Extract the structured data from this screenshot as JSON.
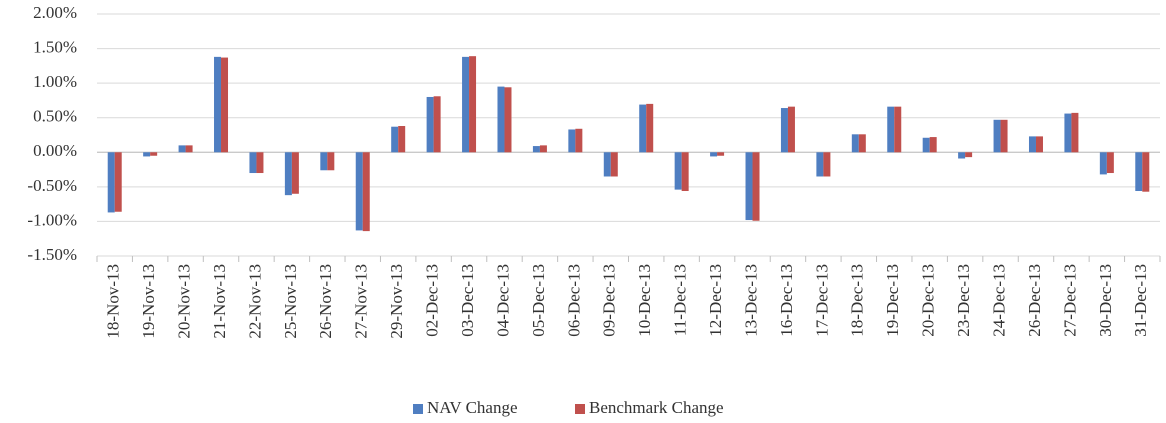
{
  "chart_data": {
    "type": "bar",
    "categories": [
      "18-Nov-13",
      "19-Nov-13",
      "20-Nov-13",
      "21-Nov-13",
      "22-Nov-13",
      "25-Nov-13",
      "26-Nov-13",
      "27-Nov-13",
      "29-Nov-13",
      "02-Dec-13",
      "03-Dec-13",
      "04-Dec-13",
      "05-Dec-13",
      "06-Dec-13",
      "09-Dec-13",
      "10-Dec-13",
      "11-Dec-13",
      "12-Dec-13",
      "13-Dec-13",
      "16-Dec-13",
      "17-Dec-13",
      "18-Dec-13",
      "19-Dec-13",
      "20-Dec-13",
      "23-Dec-13",
      "24-Dec-13",
      "26-Dec-13",
      "27-Dec-13",
      "30-Dec-13",
      "31-Dec-13"
    ],
    "series": [
      {
        "name": "NAV Change",
        "color": "#4f7ec1",
        "values": [
          -0.87,
          -0.06,
          0.1,
          1.38,
          -0.3,
          -0.62,
          -0.26,
          -1.13,
          0.37,
          0.8,
          1.38,
          0.95,
          0.09,
          0.33,
          -0.35,
          0.69,
          -0.54,
          -0.06,
          -0.98,
          0.64,
          -0.35,
          0.26,
          0.66,
          0.21,
          -0.09,
          0.47,
          0.23,
          0.56,
          -0.32,
          -0.56
        ]
      },
      {
        "name": "Benchmark Change",
        "color": "#c0504d",
        "values": [
          -0.86,
          -0.05,
          0.1,
          1.37,
          -0.3,
          -0.6,
          -0.26,
          -1.14,
          0.38,
          0.81,
          1.39,
          0.94,
          0.1,
          0.34,
          -0.35,
          0.7,
          -0.56,
          -0.05,
          -0.99,
          0.66,
          -0.35,
          0.26,
          0.66,
          0.22,
          -0.07,
          0.47,
          0.23,
          0.57,
          -0.3,
          -0.57
        ]
      }
    ],
    "ylim": [
      -1.5,
      2
    ],
    "yticks": [
      {
        "value": -1.5,
        "label": "-1.50%"
      },
      {
        "value": -1,
        "label": "-1.00%"
      },
      {
        "value": -0.5,
        "label": "-0.50%"
      },
      {
        "value": 0,
        "label": "0.00%"
      },
      {
        "value": 0.5,
        "label": "0.50%"
      },
      {
        "value": 1,
        "label": "1.00%"
      },
      {
        "value": 1.5,
        "label": "1.50%"
      },
      {
        "value": 2,
        "label": "2.00%"
      }
    ],
    "grid": true,
    "legend": "bottom"
  }
}
